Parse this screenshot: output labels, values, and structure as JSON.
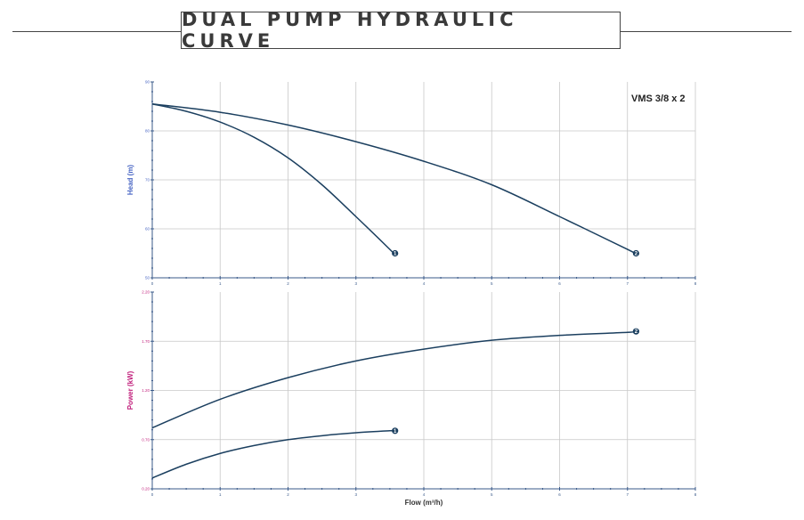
{
  "title": "DUAL PUMP HYDRAULIC CURVE",
  "model_label": "VMS 3/8 x 2",
  "chart_data": [
    {
      "type": "line",
      "ylabel": "Head (m)",
      "xlim": [
        0,
        8
      ],
      "ylim": [
        50,
        90
      ],
      "x_ticks": [
        "0",
        "1",
        "2",
        "3",
        "4",
        "5",
        "6",
        "7",
        "8"
      ],
      "y_ticks": [
        "50",
        "60",
        "70",
        "80",
        "90"
      ],
      "grid": true,
      "series": [
        {
          "name": "1",
          "x": [
            0,
            0.5,
            1,
            1.5,
            2,
            2.5,
            3,
            3.5,
            3.55
          ],
          "y": [
            85.5,
            84,
            81.8,
            78.7,
            74.5,
            69,
            62.5,
            55.8,
            55
          ]
        },
        {
          "name": "2",
          "x": [
            0,
            1,
            2,
            3,
            4,
            5,
            6,
            7,
            7.1
          ],
          "y": [
            85.5,
            83.8,
            81.2,
            77.8,
            73.8,
            69,
            62.5,
            55.8,
            55
          ]
        }
      ]
    },
    {
      "type": "line",
      "ylabel": "Power (kW)",
      "xlabel": "Flow (m³/h)",
      "xlim": [
        0,
        8
      ],
      "ylim": [
        0.2,
        2.2
      ],
      "x_ticks": [
        "0",
        "1",
        "2",
        "3",
        "4",
        "5",
        "6",
        "7",
        "8"
      ],
      "y_ticks": [
        "0.20",
        "0.70",
        "1.20",
        "1.70",
        "2.20"
      ],
      "grid": true,
      "series": [
        {
          "name": "1",
          "x": [
            0,
            0.5,
            1,
            1.5,
            2,
            2.5,
            3,
            3.5,
            3.55
          ],
          "y": [
            0.31,
            0.45,
            0.56,
            0.64,
            0.7,
            0.74,
            0.77,
            0.79,
            0.79
          ]
        },
        {
          "name": "2",
          "x": [
            0,
            1,
            2,
            3,
            4,
            5,
            6,
            7,
            7.1
          ],
          "y": [
            0.82,
            1.11,
            1.33,
            1.5,
            1.62,
            1.71,
            1.76,
            1.79,
            1.8
          ]
        }
      ]
    }
  ]
}
